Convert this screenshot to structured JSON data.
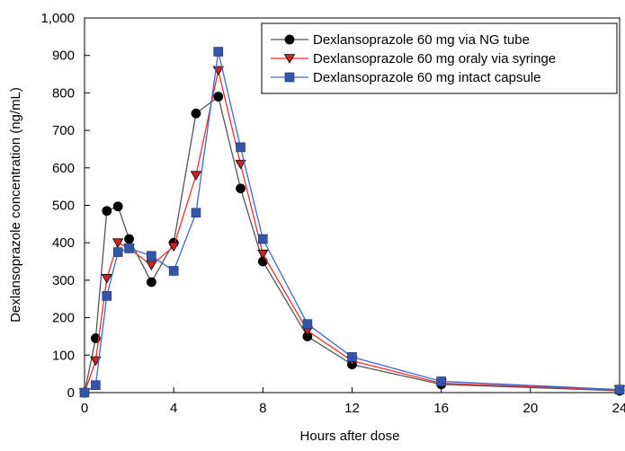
{
  "chart_data": {
    "type": "line",
    "title": "",
    "xlabel": "Hours after dose",
    "ylabel": "Dexlansoprazole concentration (ng/mL)",
    "xlim": [
      0,
      24
    ],
    "ylim": [
      0,
      1000
    ],
    "x_ticks": [
      0,
      4,
      8,
      12,
      16,
      20,
      24
    ],
    "x_tick_labels": [
      "0",
      "4",
      "8",
      "12",
      "16",
      "20",
      "24"
    ],
    "y_ticks": [
      0,
      100,
      200,
      300,
      400,
      500,
      600,
      700,
      800,
      900,
      1000
    ],
    "y_tick_labels": [
      "0",
      "100",
      "200",
      "300",
      "400",
      "500",
      "600",
      "700",
      "800",
      "900",
      "1,000"
    ],
    "grid": false,
    "legend_position": "top-right",
    "series": [
      {
        "name": "Dexlansoprazole 60 mg via NG tube",
        "color": "#000000",
        "line_color": "#555555",
        "marker": "circle",
        "x": [
          0,
          0.5,
          1,
          1.5,
          2,
          3,
          4,
          5,
          6,
          7,
          8,
          10,
          12,
          16,
          24
        ],
        "y": [
          0,
          145,
          485,
          497,
          410,
          295,
          400,
          745,
          790,
          545,
          350,
          150,
          75,
          22,
          5
        ]
      },
      {
        "name": "Dexlansoprazole 60 mg oraly via syringe",
        "color": "#cc2222",
        "line_color": "#e83030",
        "marker": "triangle-down",
        "x": [
          0,
          0.5,
          1,
          1.5,
          2,
          3,
          4,
          5,
          6,
          7,
          8,
          10,
          12,
          16,
          24
        ],
        "y": [
          0,
          85,
          305,
          400,
          385,
          340,
          390,
          580,
          860,
          610,
          370,
          165,
          85,
          25,
          7
        ]
      },
      {
        "name": "Dexlansoprazole 60 mg intact capsule",
        "color": "#3355aa",
        "line_color": "#4466cc",
        "marker": "square",
        "x": [
          0,
          0.5,
          1,
          1.5,
          2,
          3,
          4,
          5,
          6,
          7,
          8,
          10,
          12,
          16,
          24
        ],
        "y": [
          0,
          20,
          258,
          375,
          385,
          365,
          325,
          480,
          910,
          655,
          410,
          183,
          95,
          30,
          8
        ]
      }
    ]
  }
}
